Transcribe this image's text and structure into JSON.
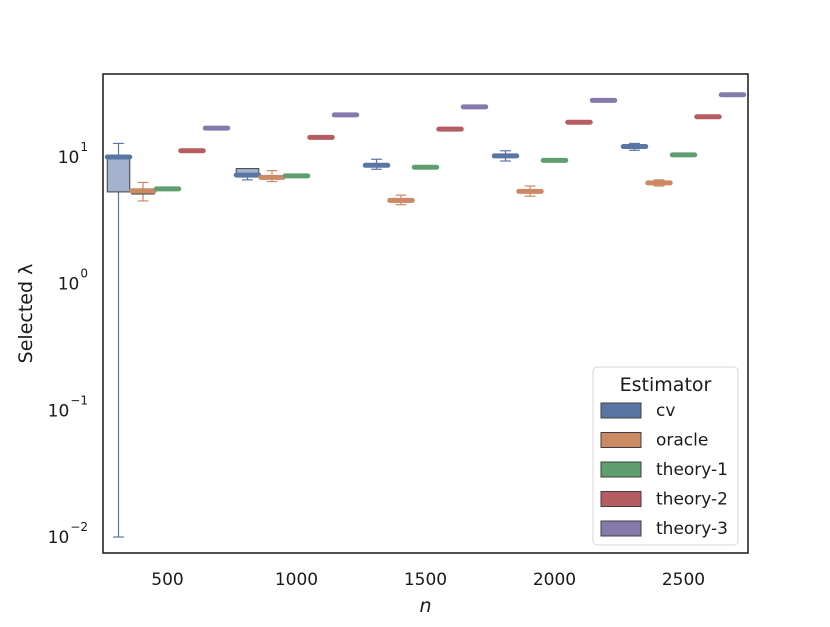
{
  "chart_data": {
    "type": "box",
    "title": "",
    "xlabel": "n",
    "ylabel": "Selected λ",
    "yscale": "log",
    "ylim": [
      0.007,
      40
    ],
    "grid": false,
    "categories": [
      "500",
      "1000",
      "1500",
      "2000",
      "2500"
    ],
    "y_ticks": [
      {
        "value": 10,
        "base": "10",
        "exp": "1"
      },
      {
        "value": 1,
        "base": "10",
        "exp": "0"
      },
      {
        "value": 0.1,
        "base": "10",
        "exp": "−1"
      },
      {
        "value": 0.01,
        "base": "10",
        "exp": "−2"
      }
    ],
    "legend": {
      "title": "Estimator",
      "placement": "lower-right"
    },
    "series": [
      {
        "name": "cv",
        "color": "#5875a4",
        "boxes": [
          {
            "whislo": 0.01,
            "q1": 5.3,
            "med": 10.0,
            "q3": 10.2,
            "whishi": 12.8
          },
          {
            "whislo": 6.6,
            "q1": 7.0,
            "med": 7.2,
            "q3": 8.1,
            "whishi": 8.1
          },
          {
            "whislo": 8.0,
            "q1": 8.4,
            "med": 8.6,
            "q3": 8.8,
            "whishi": 9.6
          },
          {
            "whislo": 9.3,
            "q1": 9.9,
            "med": 10.2,
            "q3": 10.4,
            "whishi": 11.2
          },
          {
            "whislo": 11.3,
            "q1": 11.8,
            "med": 12.1,
            "q3": 12.3,
            "whishi": 12.8
          }
        ]
      },
      {
        "name": "oracle",
        "color": "#cc8963",
        "boxes": [
          {
            "whislo": 4.5,
            "q1": 5.1,
            "med": 5.4,
            "q3": 5.6,
            "whishi": 6.3
          },
          {
            "whislo": 6.4,
            "q1": 6.7,
            "med": 6.9,
            "q3": 7.1,
            "whishi": 7.8
          },
          {
            "whislo": 4.2,
            "q1": 4.4,
            "med": 4.55,
            "q3": 4.7,
            "whishi": 5.0
          },
          {
            "whislo": 4.9,
            "q1": 5.2,
            "med": 5.35,
            "q3": 5.5,
            "whishi": 5.9
          },
          {
            "whislo": 5.9,
            "q1": 6.1,
            "med": 6.25,
            "q3": 6.4,
            "whishi": 6.6
          }
        ]
      },
      {
        "name": "theory-1",
        "color": "#5f9e6e",
        "boxes": [
          {
            "whislo": 5.6,
            "q1": 5.6,
            "med": 5.6,
            "q3": 5.6,
            "whishi": 5.6
          },
          {
            "whislo": 7.1,
            "q1": 7.1,
            "med": 7.1,
            "q3": 7.1,
            "whishi": 7.1
          },
          {
            "whislo": 8.3,
            "q1": 8.3,
            "med": 8.3,
            "q3": 8.3,
            "whishi": 8.3
          },
          {
            "whislo": 9.4,
            "q1": 9.4,
            "med": 9.4,
            "q3": 9.4,
            "whishi": 9.4
          },
          {
            "whislo": 10.4,
            "q1": 10.4,
            "med": 10.4,
            "q3": 10.4,
            "whishi": 10.4
          }
        ]
      },
      {
        "name": "theory-2",
        "color": "#b55d60",
        "boxes": [
          {
            "whislo": 11.2,
            "q1": 11.2,
            "med": 11.2,
            "q3": 11.2,
            "whishi": 11.2
          },
          {
            "whislo": 14.3,
            "q1": 14.3,
            "med": 14.3,
            "q3": 14.3,
            "whishi": 14.3
          },
          {
            "whislo": 16.6,
            "q1": 16.6,
            "med": 16.6,
            "q3": 16.6,
            "whishi": 16.6
          },
          {
            "whislo": 18.8,
            "q1": 18.8,
            "med": 18.8,
            "q3": 18.8,
            "whishi": 18.8
          },
          {
            "whislo": 20.8,
            "q1": 20.8,
            "med": 20.8,
            "q3": 20.8,
            "whishi": 20.8
          }
        ]
      },
      {
        "name": "theory-3",
        "color": "#857aab",
        "boxes": [
          {
            "whislo": 16.9,
            "q1": 16.9,
            "med": 16.9,
            "q3": 16.9,
            "whishi": 16.9
          },
          {
            "whislo": 21.5,
            "q1": 21.5,
            "med": 21.5,
            "q3": 21.5,
            "whishi": 21.5
          },
          {
            "whislo": 24.9,
            "q1": 24.9,
            "med": 24.9,
            "q3": 24.9,
            "whishi": 24.9
          },
          {
            "whislo": 28.0,
            "q1": 28.0,
            "med": 28.0,
            "q3": 28.0,
            "whishi": 28.0
          },
          {
            "whislo": 31.0,
            "q1": 31.0,
            "med": 31.0,
            "q3": 31.0,
            "whishi": 31.0
          }
        ]
      }
    ]
  }
}
